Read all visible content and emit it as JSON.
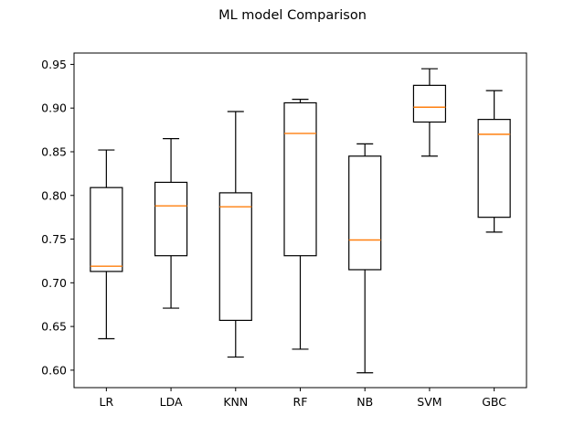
{
  "chart_data": {
    "type": "box",
    "title": "ML model Comparison",
    "xlabel": "",
    "ylabel": "",
    "ylim": [
      0.58,
      0.963
    ],
    "yticks": [
      "0.60",
      "0.65",
      "0.70",
      "0.75",
      "0.80",
      "0.85",
      "0.90",
      "0.95"
    ],
    "grid": false,
    "categories": [
      "LR",
      "LDA",
      "KNN",
      "RF",
      "NB",
      "SVM",
      "GBC"
    ],
    "boxes": [
      {
        "label": "LR",
        "whisker_low": 0.636,
        "q1": 0.713,
        "median": 0.719,
        "q3": 0.809,
        "whisker_high": 0.852
      },
      {
        "label": "LDA",
        "whisker_low": 0.671,
        "q1": 0.731,
        "median": 0.788,
        "q3": 0.815,
        "whisker_high": 0.865
      },
      {
        "label": "KNN",
        "whisker_low": 0.615,
        "q1": 0.657,
        "median": 0.787,
        "q3": 0.803,
        "whisker_high": 0.896
      },
      {
        "label": "RF",
        "whisker_low": 0.624,
        "q1": 0.731,
        "median": 0.871,
        "q3": 0.906,
        "whisker_high": 0.91
      },
      {
        "label": "NB",
        "whisker_low": 0.597,
        "q1": 0.715,
        "median": 0.749,
        "q3": 0.845,
        "whisker_high": 0.859
      },
      {
        "label": "SVM",
        "whisker_low": 0.845,
        "q1": 0.884,
        "median": 0.901,
        "q3": 0.926,
        "whisker_high": 0.945
      },
      {
        "label": "GBC",
        "whisker_low": 0.758,
        "q1": 0.775,
        "median": 0.87,
        "q3": 0.887,
        "whisker_high": 0.92
      }
    ],
    "colors": {
      "box": "#000000",
      "median": "#ff7f0e",
      "axes": "#000000",
      "background": "#ffffff"
    }
  }
}
